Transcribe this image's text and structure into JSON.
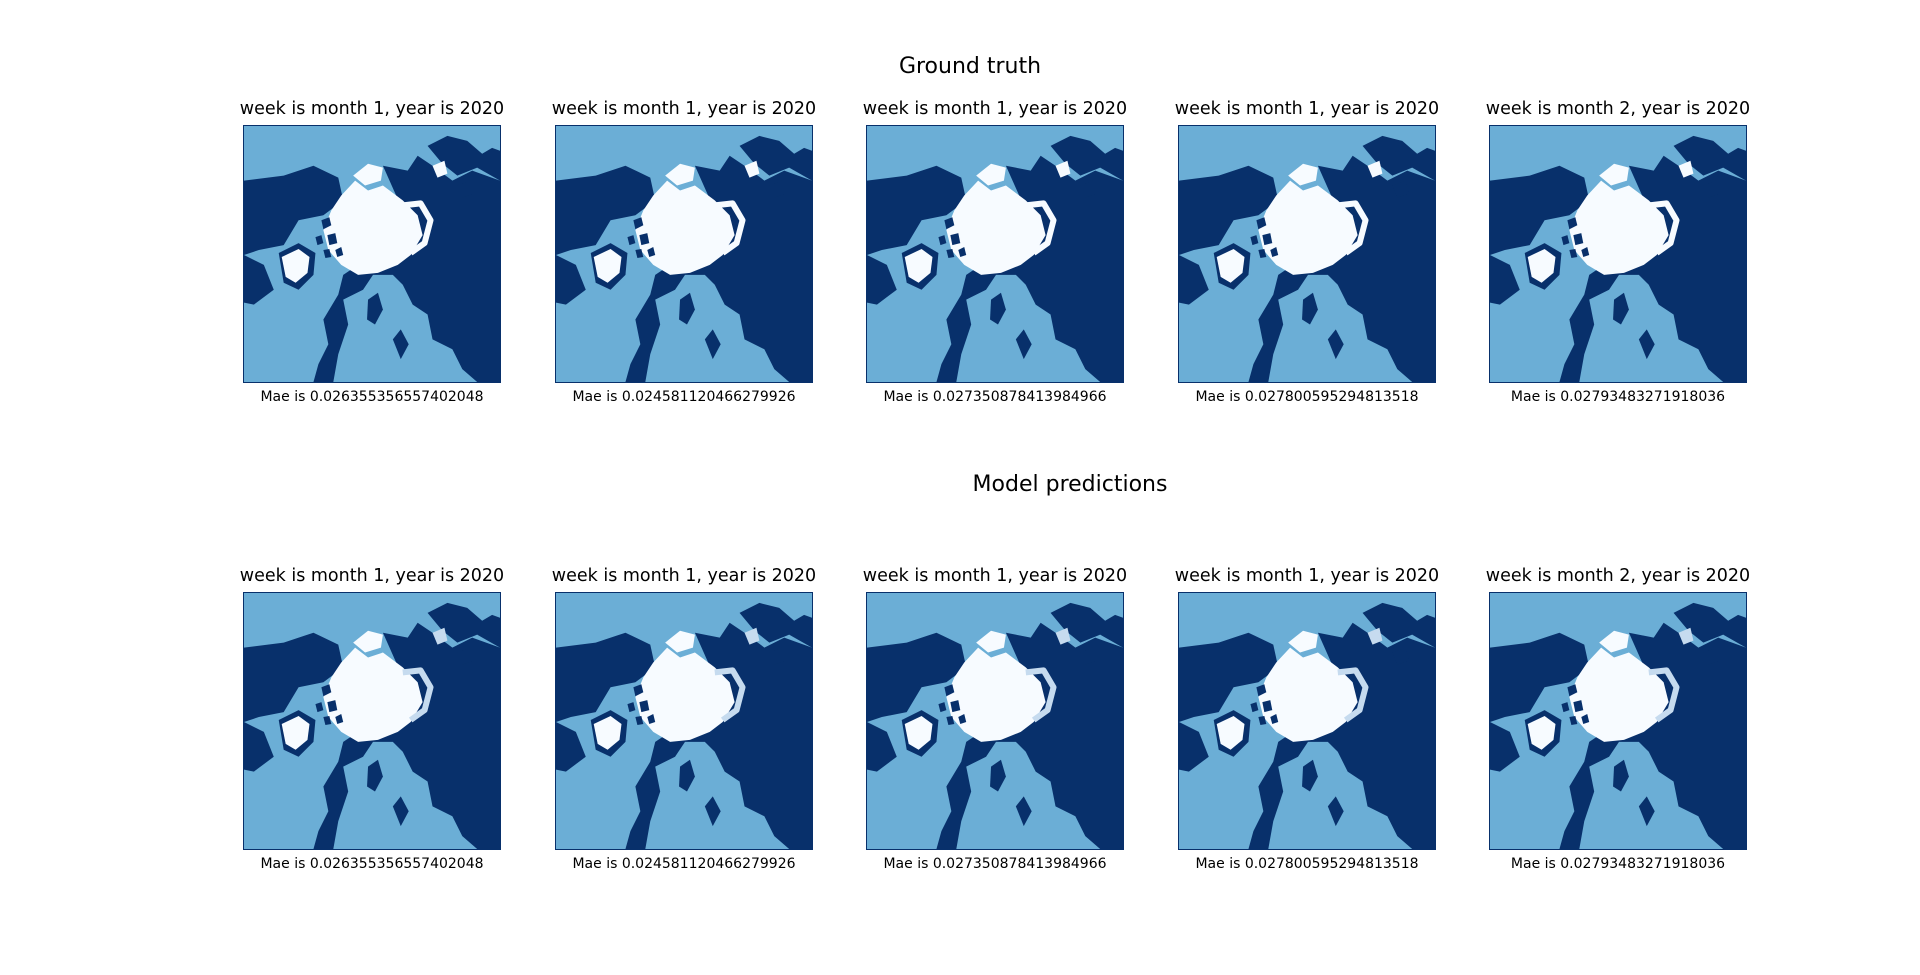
{
  "colors": {
    "ocean_ice_free": "#08306b",
    "land": "#6baed6",
    "sea_ice": "#f7fbff",
    "ice_edge": "#c6dbef"
  },
  "rows": [
    {
      "title": "Ground truth",
      "panels": [
        {
          "title": "week is month 1, year is 2020",
          "caption": "Mae is 0.026355356557402048"
        },
        {
          "title": "week is month 1, year is 2020",
          "caption": "Mae is 0.024581120466279926"
        },
        {
          "title": "week is month 1, year is 2020",
          "caption": "Mae is 0.027350878413984966"
        },
        {
          "title": "week is month 1, year is 2020",
          "caption": "Mae is 0.027800595294813518"
        },
        {
          "title": "week is month 2, year is 2020",
          "caption": "Mae is 0.02793483271918036"
        }
      ]
    },
    {
      "title": "Model predictions",
      "panels": [
        {
          "title": "week is month 1, year is 2020",
          "caption": "Mae is 0.026355356557402048"
        },
        {
          "title": "week is month 1, year is 2020",
          "caption": "Mae is 0.024581120466279926"
        },
        {
          "title": "week is month 1, year is 2020",
          "caption": "Mae is 0.027350878413984966"
        },
        {
          "title": "week is month 1, year is 2020",
          "caption": "Mae is 0.027800595294813518"
        },
        {
          "title": "week is month 2, year is 2020",
          "caption": "Mae is 0.02793483271918036"
        }
      ]
    }
  ]
}
